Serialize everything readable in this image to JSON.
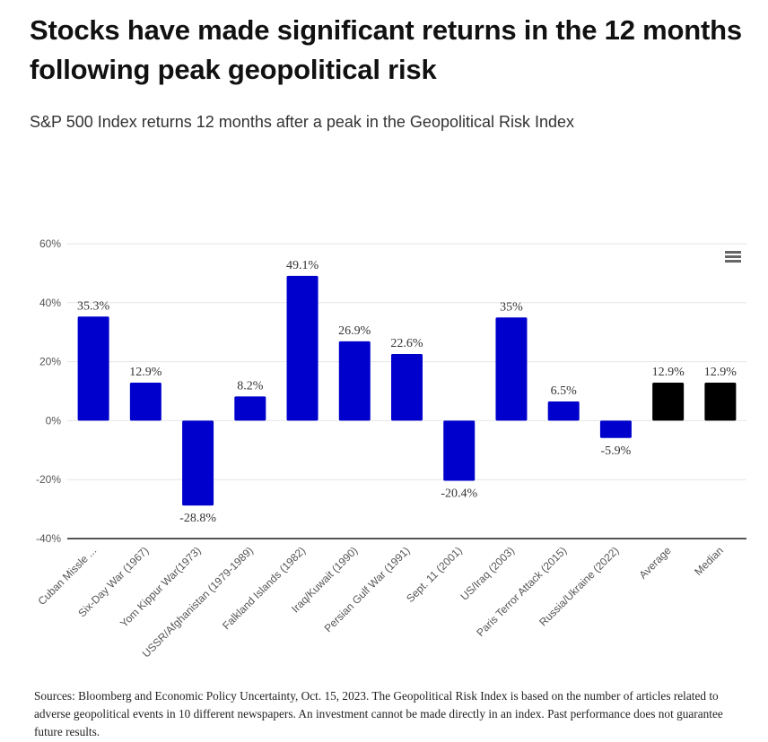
{
  "header": {
    "title": "Stocks have made significant returns in the 12 months following peak geopolitical risk",
    "subtitle": "S&P 500 Index returns 12 months after a peak in the Geopolitical Risk Index"
  },
  "menu": {
    "icon": "hamburger-menu-icon"
  },
  "colors": {
    "event_bar": "#0000CC",
    "summary_bar": "#000000",
    "grid": "#E6E6E6",
    "axis": "#555555"
  },
  "chart_data": {
    "type": "bar",
    "title": "S&P 500 Index returns 12 months after a peak in the Geopolitical Risk Index",
    "xlabel": "",
    "ylabel": "",
    "ylim": [
      -40,
      60
    ],
    "yticks": [
      60,
      40,
      20,
      0,
      -20,
      -40
    ],
    "ytick_labels": [
      "60%",
      "40%",
      "20%",
      "0%",
      "-20%",
      "-40%"
    ],
    "grid": true,
    "legend": "none",
    "categories": [
      "Cuban Missle ...",
      "Six-Day War (1967)",
      "Yom Kippur War(1973)",
      "USSR/Afghanistan (1979-1989)",
      "Falkland Islands (1982)",
      "Iraq/Kuwait (1990)",
      "Persian Gulf War (1991)",
      "Sept. 11 (2001)",
      "US/Iraq (2003)",
      "Paris Terror Attack (2015)",
      "Russia/Ukraine (2022)",
      "Average",
      "Median"
    ],
    "values": [
      35.3,
      12.9,
      -28.8,
      8.2,
      49.1,
      26.9,
      22.6,
      -20.4,
      35,
      6.5,
      -5.9,
      12.9,
      12.9
    ],
    "data_labels": [
      "35.3%",
      "12.9%",
      "-28.8%",
      "8.2%",
      "49.1%",
      "26.9%",
      "22.6%",
      "-20.4%",
      "35%",
      "6.5%",
      "-5.9%",
      "12.9%",
      "12.9%"
    ],
    "bar_kind": [
      "event",
      "event",
      "event",
      "event",
      "event",
      "event",
      "event",
      "event",
      "event",
      "event",
      "event",
      "summary",
      "summary"
    ]
  },
  "footer": {
    "note": "Sources: Bloomberg and Economic Policy Uncertainty, Oct. 15, 2023. The Geopolitical Risk Index is based on the number of articles related to adverse geopolitical events in 10 different newspapers. An investment cannot be made directly in an index. Past performance does not guarantee future results."
  }
}
